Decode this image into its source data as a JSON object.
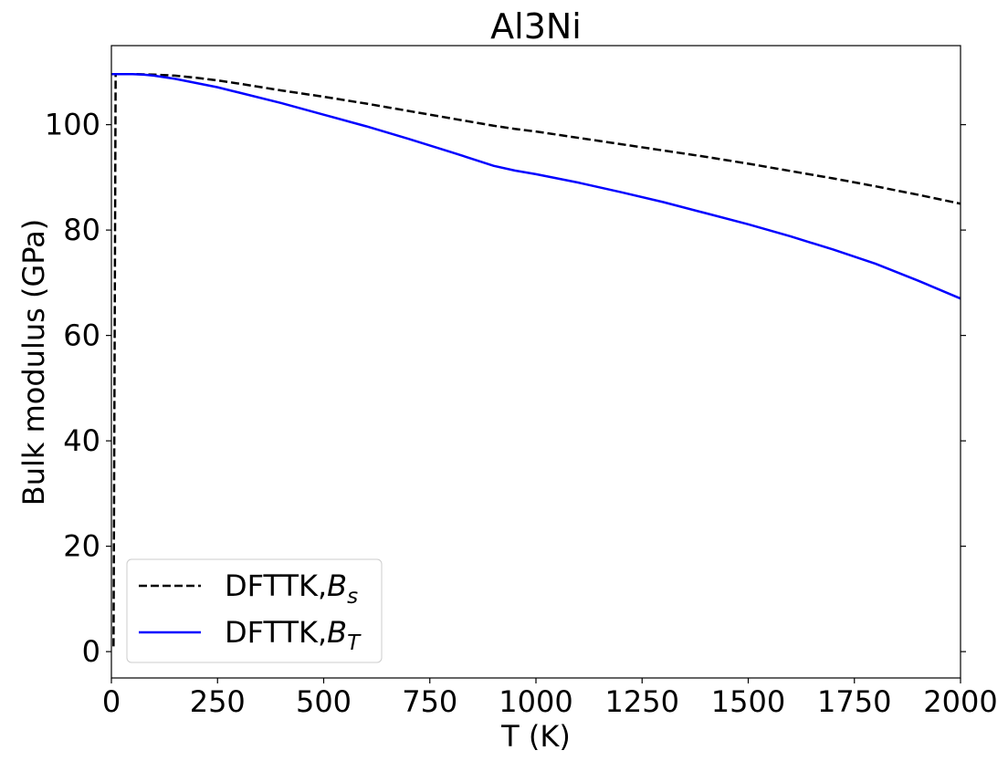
{
  "chart_data": {
    "type": "line",
    "title": "Al3Ni",
    "xlabel": "T (K)",
    "ylabel": "Bulk modulus (GPa)",
    "xlim": [
      0,
      2000
    ],
    "ylim": [
      -5,
      115
    ],
    "xticks": [
      0,
      250,
      500,
      750,
      1000,
      1250,
      1500,
      1750,
      2000
    ],
    "yticks": [
      0,
      20,
      40,
      60,
      80,
      100
    ],
    "grid": false,
    "legend_position": "lower-left",
    "series": [
      {
        "name_base": "DFTTK,",
        "name_symbol": "B",
        "name_sub": "s",
        "color": "#000000",
        "style": "dashed",
        "x": [
          5,
          10,
          20,
          50,
          100,
          150,
          200,
          250,
          300,
          400,
          500,
          600,
          700,
          800,
          900,
          950,
          1000,
          1100,
          1200,
          1300,
          1400,
          1500,
          1600,
          1700,
          1800,
          1900,
          2000
        ],
        "y": [
          1,
          109.6,
          109.6,
          109.6,
          109.5,
          109.3,
          108.9,
          108.4,
          107.8,
          106.5,
          105.3,
          104.0,
          102.6,
          101.2,
          99.8,
          99.2,
          98.7,
          97.5,
          96.3,
          95.1,
          93.9,
          92.6,
          91.2,
          89.8,
          88.3,
          86.7,
          85.0
        ]
      },
      {
        "name_base": "DFTTK,",
        "name_symbol": "B",
        "name_sub": "T",
        "color": "#0000ff",
        "style": "solid",
        "x": [
          0,
          20,
          50,
          75,
          100,
          150,
          200,
          250,
          300,
          400,
          500,
          600,
          700,
          800,
          900,
          950,
          1000,
          1100,
          1200,
          1300,
          1400,
          1500,
          1600,
          1700,
          1800,
          1900,
          2000
        ],
        "y": [
          109.6,
          109.6,
          109.6,
          109.5,
          109.3,
          108.7,
          107.9,
          107.1,
          106.1,
          104.1,
          101.9,
          99.7,
          97.3,
          94.8,
          92.2,
          91.3,
          90.6,
          89.0,
          87.2,
          85.3,
          83.2,
          81.1,
          78.8,
          76.3,
          73.6,
          70.4,
          67.0
        ]
      }
    ]
  }
}
